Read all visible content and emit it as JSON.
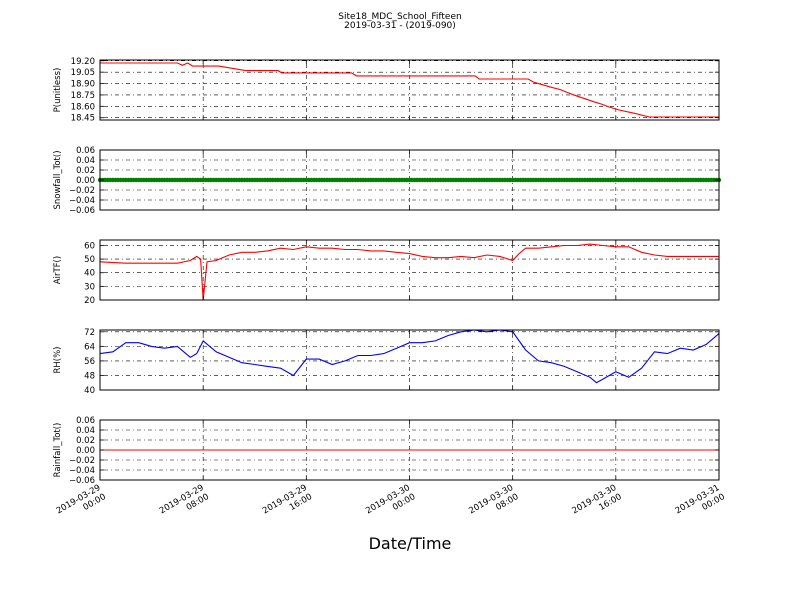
{
  "figure": {
    "title": "Site18_MDC_School_Fifteen",
    "subtitle": "2019-03-31 - (2019-090)",
    "xlabel": "Date/Time"
  },
  "chart_data": [
    {
      "type": "line",
      "ylabel": "P(unitless)",
      "ylim": [
        18.42,
        19.21
      ],
      "yticks": [
        "19.20",
        "19.05",
        "18.90",
        "18.75",
        "18.60",
        "18.45"
      ],
      "ytick_values": [
        19.2,
        19.05,
        18.9,
        18.75,
        18.6,
        18.45
      ],
      "xlim": [
        0,
        48
      ],
      "grid": true,
      "color": "#ff0000",
      "series": [
        {
          "x": [
            0,
            6,
            6.4,
            6.8,
            7.2,
            9.2,
            11.3,
            13.8,
            14.1,
            19.5,
            19.9,
            29.1,
            29.4,
            33.2,
            33.6,
            34.2,
            35,
            35.7,
            36.3,
            36.9,
            37.6,
            38.3,
            38.9,
            39.5,
            40.3,
            41.4,
            42.6,
            48
          ],
          "y": [
            19.17,
            19.17,
            19.14,
            19.17,
            19.13,
            19.13,
            19.07,
            19.07,
            19.04,
            19.04,
            19.0,
            19.0,
            18.96,
            18.96,
            18.92,
            18.89,
            18.85,
            18.82,
            18.78,
            18.74,
            18.7,
            18.66,
            18.63,
            18.59,
            18.55,
            18.51,
            18.46,
            18.46
          ]
        }
      ]
    },
    {
      "type": "scatter",
      "ylabel": "Snowfall_Tot()",
      "ylim": [
        -0.06,
        0.06
      ],
      "yticks": [
        "0.06",
        "0.04",
        "0.02",
        "0.00",
        "−0.02",
        "−0.04",
        "−0.06"
      ],
      "ytick_values": [
        0.06,
        0.04,
        0.02,
        0,
        -0.02,
        -0.04,
        -0.06
      ],
      "xlim": [
        0,
        48
      ],
      "grid": true,
      "color": "#007f00",
      "series": [
        {
          "x_start": 0,
          "x_end": 48,
          "y": 0
        }
      ]
    },
    {
      "type": "line",
      "ylabel": "AirTF()",
      "ylim": [
        20,
        64
      ],
      "yticks": [
        "60",
        "50",
        "40",
        "30",
        "20"
      ],
      "ytick_values": [
        60,
        50,
        40,
        30,
        20
      ],
      "xlim": [
        0,
        48
      ],
      "grid": true,
      "color": "#ff0000",
      "series": [
        {
          "x": [
            0,
            2,
            4,
            6,
            7,
            7.5,
            7.8,
            8.0,
            8.3,
            9,
            10,
            11,
            12,
            13,
            14,
            15,
            16,
            17,
            18,
            19,
            20,
            21,
            22,
            23,
            24,
            25,
            26,
            27,
            28,
            29,
            30,
            31,
            32,
            32.5,
            33,
            34,
            35,
            36,
            37,
            38,
            39,
            40,
            41,
            42,
            43,
            44,
            45,
            46,
            47,
            48
          ],
          "y": [
            48,
            47,
            47,
            47,
            49,
            52,
            50,
            20,
            48,
            49,
            53,
            55,
            55,
            56,
            58,
            57,
            59,
            58,
            58,
            57,
            57,
            56,
            56,
            55,
            54,
            52,
            51,
            51,
            52,
            51,
            53,
            52,
            49,
            54,
            58,
            58,
            59,
            60,
            60,
            61,
            60,
            59,
            59,
            55,
            53,
            52,
            52,
            52,
            52,
            52
          ]
        }
      ]
    },
    {
      "type": "line",
      "ylabel": "RH(%)",
      "ylim": [
        40,
        73
      ],
      "yticks": [
        "72",
        "64",
        "56",
        "48",
        "40"
      ],
      "ytick_values": [
        72,
        64,
        56,
        48,
        40
      ],
      "xlim": [
        0,
        48
      ],
      "grid": true,
      "color": "#0000ff",
      "series": [
        {
          "x": [
            0,
            1,
            2,
            3,
            4,
            5,
            6,
            7,
            7.5,
            8,
            9,
            10,
            11,
            12,
            13,
            14,
            15,
            16,
            17,
            18,
            19,
            20,
            21,
            22,
            23,
            24,
            25,
            26,
            27,
            28,
            29,
            30,
            31,
            32,
            32.7,
            33,
            34,
            35,
            36,
            37,
            38,
            38.5,
            39,
            40,
            41,
            42,
            43,
            44,
            45,
            46,
            47,
            48
          ],
          "y": [
            60,
            61,
            66,
            66,
            64,
            63,
            64,
            58,
            60,
            67,
            61,
            58,
            55,
            54,
            53,
            52,
            48,
            57,
            57,
            54,
            56,
            59,
            59,
            60,
            63,
            66,
            66,
            67,
            70,
            72,
            73,
            72,
            73,
            72,
            65,
            62,
            56,
            55,
            53,
            50,
            47,
            44,
            46,
            50,
            47,
            52,
            61,
            60,
            63,
            62,
            65,
            71
          ]
        }
      ]
    },
    {
      "type": "line",
      "ylabel": "Rainfall_Tot()",
      "ylim": [
        -0.06,
        0.06
      ],
      "yticks": [
        "0.06",
        "0.04",
        "0.02",
        "0.00",
        "−0.02",
        "−0.04",
        "−0.06"
      ],
      "ytick_values": [
        0.06,
        0.04,
        0.02,
        0,
        -0.02,
        -0.04,
        -0.06
      ],
      "xlim": [
        0,
        48
      ],
      "grid": true,
      "color": "#ff0000",
      "series": [
        {
          "x": [
            0,
            48
          ],
          "y": [
            0,
            0
          ]
        }
      ]
    }
  ],
  "x_axis": {
    "tick_values": [
      0,
      8,
      16,
      24,
      32,
      40,
      48
    ],
    "tick_labels": [
      [
        "2019-03-29",
        "00:00"
      ],
      [
        "2019-03-29",
        "08:00"
      ],
      [
        "2019-03-29",
        "16:00"
      ],
      [
        "2019-03-30",
        "00:00"
      ],
      [
        "2019-03-30",
        "08:00"
      ],
      [
        "2019-03-30",
        "16:00"
      ],
      [
        "2019-03-31",
        "00:00"
      ]
    ]
  }
}
